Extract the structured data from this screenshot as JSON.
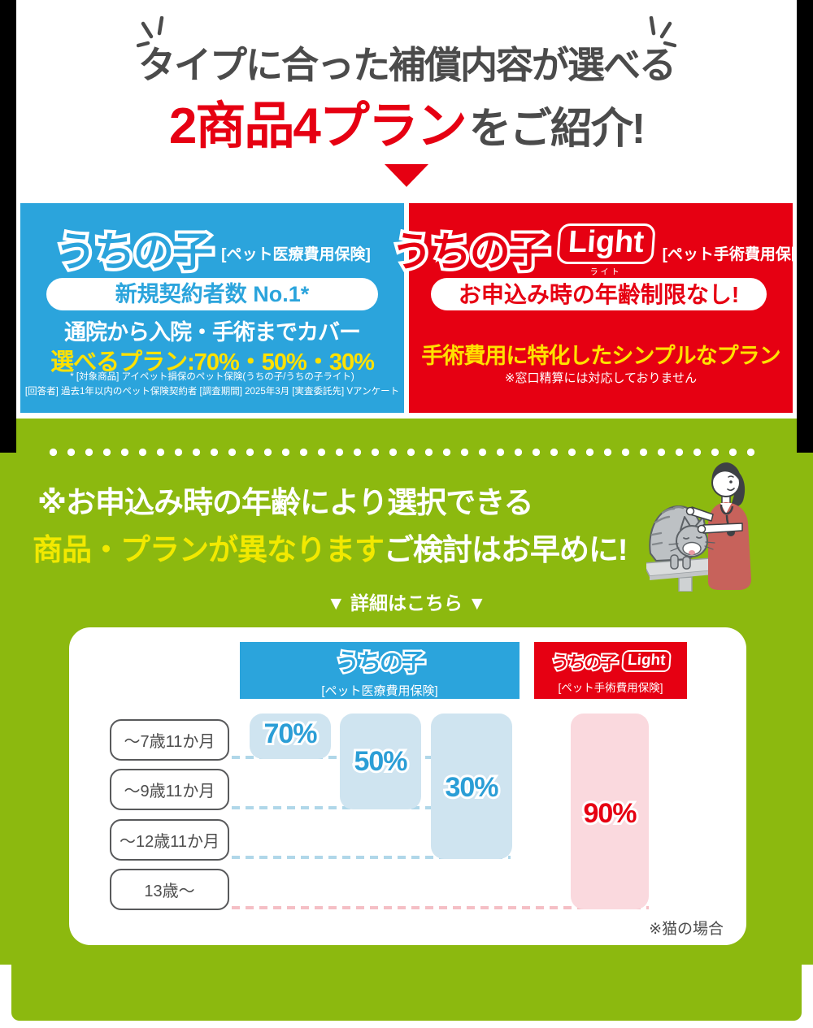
{
  "header": {
    "title_line1": "タイプに合った補償内容が選べる",
    "title_line2_emphasis": "2商品4プラン",
    "title_line2_rest": "をご紹介!"
  },
  "products": {
    "uchinoko": {
      "logo": "うちの子",
      "category": "[ペット医療費用保険]",
      "badge": "新規契約者数 No.1*",
      "feature": "通院から入院・手術までカバー",
      "plans": "選べるプラン:70%・50%・30%",
      "footnote1": "* [対象商品] アイペット損保のペット保険(うちの子/うちの子ライト)",
      "footnote2": "[回答者] 過去1年以内のペット保険契約者 [調査期間] 2025年3月 [実査委託先] Vアンケート",
      "color": "#2ba4dc"
    },
    "uchinoko_light": {
      "logo": "うちの子",
      "logo_suffix": "Light",
      "logo_suffix_ruby": "ライト",
      "category": "[ペット手術費用保険]",
      "badge": "お申込み時の年齢制限なし!",
      "feature": "手術費用に特化したシンプルなプラン",
      "footnote": "※窓口精算には対応しておりません",
      "color": "#e60012"
    }
  },
  "notice": {
    "line1": "※お申込み時の年齢により選択できる",
    "line2_emphasis": "商品・プランが異なります",
    "line2_rest": "ご検討はお早めに!",
    "details_label": "▼ 詳細はこちら ▼"
  },
  "chart_data": {
    "type": "bar",
    "categories": [
      "〜7歳11か月",
      "〜9歳11か月",
      "〜12歳11か月",
      "13歳〜"
    ],
    "products": [
      {
        "name": "うちの子",
        "category_label": "[ペット医療費用保険]",
        "color": "#2ba4dc",
        "plans": [
          {
            "label": "70%",
            "rows_covered": 1,
            "available_through": "〜7歳11か月"
          },
          {
            "label": "50%",
            "rows_covered": 2,
            "available_through": "〜9歳11か月"
          },
          {
            "label": "30%",
            "rows_covered": 3,
            "available_through": "〜12歳11か月"
          }
        ]
      },
      {
        "name": "うちの子",
        "name_suffix": "Light",
        "suffix_ruby": "ライト",
        "category_label": "[ペット手術費用保険]",
        "color": "#e60012",
        "plans": [
          {
            "label": "90%",
            "rows_covered": 4,
            "available_through": "13歳〜"
          }
        ]
      }
    ],
    "footnote": "※猫の場合",
    "legend_position": "top",
    "grid": "dashed row separators"
  }
}
